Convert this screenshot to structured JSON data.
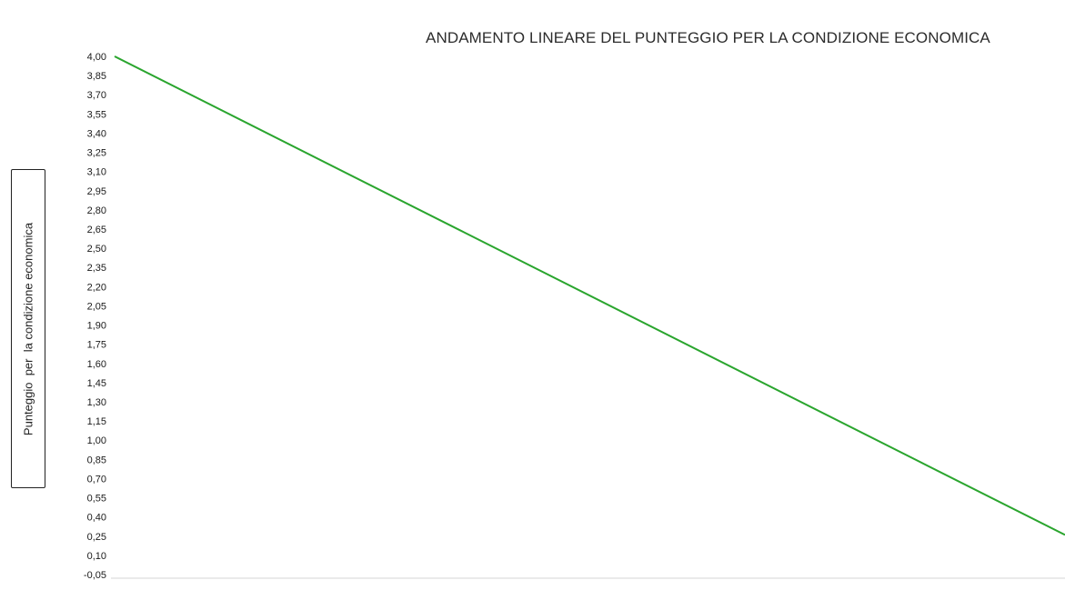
{
  "chart_data": {
    "type": "line",
    "title": "ANDAMENTO LINEARE DEL PUNTEGGIO PER LA CONDIZIONE ECONOMICA",
    "xlabel": "",
    "ylabel": "Punteggio  per  la condizione economica",
    "ylim": [
      -0.05,
      4.0
    ],
    "y_ticks": [
      "4,00",
      "3,85",
      "3,70",
      "3,55",
      "3,40",
      "3,25",
      "3,10",
      "2,95",
      "2,80",
      "2,65",
      "2,50",
      "2,35",
      "2,20",
      "2,05",
      "1,90",
      "1,75",
      "1,60",
      "1,45",
      "1,30",
      "1,15",
      "1,00",
      "0,85",
      "0,70",
      "0,55",
      "0,40",
      "0,25",
      "0,10",
      "-0,05"
    ],
    "grid": false,
    "legend": "none",
    "series": [
      {
        "color": "#2aa52e",
        "x": [
          0,
          1
        ],
        "y": [
          4.0,
          0.26
        ]
      }
    ]
  }
}
